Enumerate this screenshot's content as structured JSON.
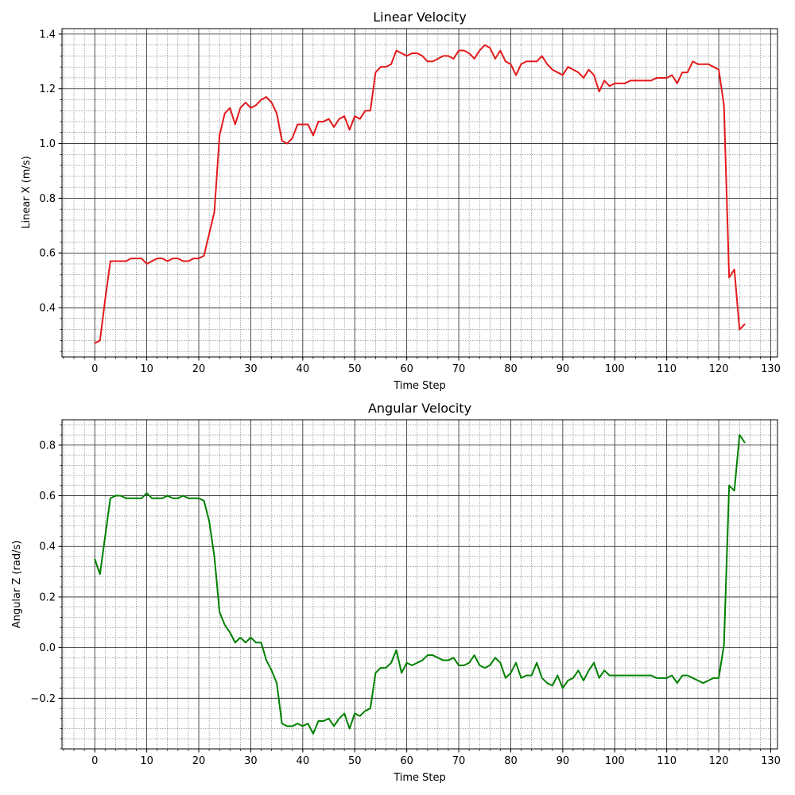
{
  "chart_data": [
    {
      "type": "line",
      "title": "Linear Velocity",
      "xlabel": "Time Step",
      "ylabel": "Linear X (m/s)",
      "xlim": [
        -6.3,
        131.3
      ],
      "ylim": [
        0.22,
        1.42
      ],
      "xticks": [
        0,
        10,
        20,
        30,
        40,
        50,
        60,
        70,
        80,
        90,
        100,
        110,
        120,
        130
      ],
      "yticks": [
        0.4,
        0.6,
        0.8,
        1.0,
        1.2,
        1.4
      ],
      "xtick_labels": [
        "0",
        "10",
        "20",
        "30",
        "40",
        "50",
        "60",
        "70",
        "80",
        "90",
        "100",
        "110",
        "120",
        "130"
      ],
      "ytick_labels": [
        "0.4",
        "0.6",
        "0.8",
        "1.0",
        "1.2",
        "1.4"
      ],
      "grid": true,
      "series": [
        {
          "color": "#e31a1c",
          "x": [
            0,
            1,
            2,
            3,
            4,
            5,
            6,
            7,
            8,
            9,
            10,
            11,
            12,
            13,
            14,
            15,
            16,
            17,
            18,
            19,
            20,
            21,
            22,
            23,
            24,
            25,
            26,
            27,
            28,
            29,
            30,
            31,
            32,
            33,
            34,
            35,
            36,
            37,
            38,
            39,
            40,
            41,
            42,
            43,
            44,
            45,
            46,
            47,
            48,
            49,
            50,
            51,
            52,
            53,
            54,
            55,
            56,
            57,
            58,
            59,
            60,
            61,
            62,
            63,
            64,
            65,
            66,
            67,
            68,
            69,
            70,
            71,
            72,
            73,
            74,
            75,
            76,
            77,
            78,
            79,
            80,
            81,
            82,
            83,
            84,
            85,
            86,
            87,
            88,
            89,
            90,
            91,
            92,
            93,
            94,
            95,
            96,
            97,
            98,
            99,
            100,
            101,
            102,
            103,
            104,
            105,
            106,
            107,
            108,
            109,
            110,
            111,
            112,
            113,
            114,
            115,
            116,
            117,
            118,
            119,
            120,
            121,
            122,
            123,
            124,
            125
          ],
          "y": [
            0.27,
            0.28,
            0.43,
            0.57,
            0.57,
            0.57,
            0.57,
            0.58,
            0.58,
            0.58,
            0.56,
            0.57,
            0.58,
            0.58,
            0.57,
            0.58,
            0.58,
            0.57,
            0.57,
            0.58,
            0.58,
            0.59,
            0.67,
            0.75,
            1.03,
            1.11,
            1.13,
            1.07,
            1.13,
            1.15,
            1.13,
            1.14,
            1.16,
            1.17,
            1.15,
            1.11,
            1.01,
            1.0,
            1.02,
            1.07,
            1.07,
            1.07,
            1.03,
            1.08,
            1.08,
            1.09,
            1.06,
            1.09,
            1.1,
            1.05,
            1.1,
            1.09,
            1.12,
            1.12,
            1.26,
            1.28,
            1.28,
            1.29,
            1.34,
            1.33,
            1.32,
            1.33,
            1.33,
            1.32,
            1.3,
            1.3,
            1.31,
            1.32,
            1.32,
            1.31,
            1.34,
            1.34,
            1.33,
            1.31,
            1.34,
            1.36,
            1.35,
            1.31,
            1.34,
            1.3,
            1.29,
            1.25,
            1.29,
            1.3,
            1.3,
            1.3,
            1.32,
            1.29,
            1.27,
            1.26,
            1.25,
            1.28,
            1.27,
            1.26,
            1.24,
            1.27,
            1.25,
            1.19,
            1.23,
            1.21,
            1.22,
            1.22,
            1.22,
            1.23,
            1.23,
            1.23,
            1.23,
            1.23,
            1.24,
            1.24,
            1.24,
            1.25,
            1.22,
            1.26,
            1.26,
            1.3,
            1.29,
            1.29,
            1.29,
            1.28,
            1.27,
            1.14,
            0.51,
            0.54,
            0.32,
            0.34
          ]
        }
      ]
    },
    {
      "type": "line",
      "title": "Angular Velocity",
      "xlabel": "Time Step",
      "ylabel": "Angular Z (rad/s)",
      "xlim": [
        -6.3,
        131.3
      ],
      "ylim": [
        -0.4,
        0.9
      ],
      "xticks": [
        0,
        10,
        20,
        30,
        40,
        50,
        60,
        70,
        80,
        90,
        100,
        110,
        120,
        130
      ],
      "yticks": [
        -0.2,
        0.0,
        0.2,
        0.4,
        0.6,
        0.8
      ],
      "xtick_labels": [
        "0",
        "10",
        "20",
        "30",
        "40",
        "50",
        "60",
        "70",
        "80",
        "90",
        "100",
        "110",
        "120",
        "130"
      ],
      "ytick_labels": [
        "−0.2",
        "0.0",
        "0.2",
        "0.4",
        "0.6",
        "0.8"
      ],
      "grid": true,
      "series": [
        {
          "color": "#008000",
          "x": [
            0,
            1,
            2,
            3,
            4,
            5,
            6,
            7,
            8,
            9,
            10,
            11,
            12,
            13,
            14,
            15,
            16,
            17,
            18,
            19,
            20,
            21,
            22,
            23,
            24,
            25,
            26,
            27,
            28,
            29,
            30,
            31,
            32,
            33,
            34,
            35,
            36,
            37,
            38,
            39,
            40,
            41,
            42,
            43,
            44,
            45,
            46,
            47,
            48,
            49,
            50,
            51,
            52,
            53,
            54,
            55,
            56,
            57,
            58,
            59,
            60,
            61,
            62,
            63,
            64,
            65,
            66,
            67,
            68,
            69,
            70,
            71,
            72,
            73,
            74,
            75,
            76,
            77,
            78,
            79,
            80,
            81,
            82,
            83,
            84,
            85,
            86,
            87,
            88,
            89,
            90,
            91,
            92,
            93,
            94,
            95,
            96,
            97,
            98,
            99,
            100,
            101,
            102,
            103,
            104,
            105,
            106,
            107,
            108,
            109,
            110,
            111,
            112,
            113,
            114,
            115,
            116,
            117,
            118,
            119,
            120,
            121,
            122,
            123,
            124,
            125
          ],
          "y": [
            0.35,
            0.29,
            0.44,
            0.59,
            0.6,
            0.6,
            0.59,
            0.59,
            0.59,
            0.59,
            0.61,
            0.59,
            0.59,
            0.59,
            0.6,
            0.59,
            0.59,
            0.6,
            0.59,
            0.59,
            0.59,
            0.58,
            0.5,
            0.36,
            0.14,
            0.09,
            0.06,
            0.02,
            0.04,
            0.02,
            0.04,
            0.02,
            0.02,
            -0.05,
            -0.09,
            -0.14,
            -0.3,
            -0.31,
            -0.31,
            -0.3,
            -0.31,
            -0.3,
            -0.34,
            -0.29,
            -0.29,
            -0.28,
            -0.31,
            -0.28,
            -0.26,
            -0.32,
            -0.26,
            -0.27,
            -0.25,
            -0.24,
            -0.1,
            -0.08,
            -0.08,
            -0.06,
            -0.01,
            -0.1,
            -0.06,
            -0.07,
            -0.06,
            -0.05,
            -0.03,
            -0.03,
            -0.04,
            -0.05,
            -0.05,
            -0.04,
            -0.07,
            -0.07,
            -0.06,
            -0.03,
            -0.07,
            -0.08,
            -0.07,
            -0.04,
            -0.06,
            -0.12,
            -0.1,
            -0.06,
            -0.12,
            -0.11,
            -0.11,
            -0.06,
            -0.12,
            -0.14,
            -0.15,
            -0.11,
            -0.16,
            -0.13,
            -0.12,
            -0.09,
            -0.13,
            -0.09,
            -0.06,
            -0.12,
            -0.09,
            -0.11,
            -0.11,
            -0.11,
            -0.11,
            -0.11,
            -0.11,
            -0.11,
            -0.11,
            -0.11,
            -0.12,
            -0.12,
            -0.12,
            -0.11,
            -0.14,
            -0.11,
            -0.11,
            -0.12,
            -0.13,
            -0.14,
            -0.13,
            -0.12,
            -0.12,
            0.01,
            0.64,
            0.62,
            0.84,
            0.81
          ]
        }
      ]
    }
  ]
}
